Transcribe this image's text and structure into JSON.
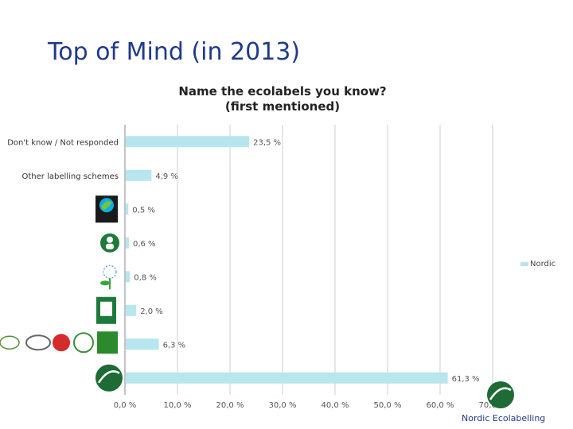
{
  "slide": {
    "title": "Top of Mind (in 2013)"
  },
  "footer": {
    "text": "Nordic Ecolabelling"
  },
  "chart_data": {
    "type": "bar",
    "orientation": "horizontal",
    "title_lines": [
      "Name the ecolabels you know?",
      "(first mentioned)"
    ],
    "categories": [
      "Don't know / Not responded",
      "Other labelling schemes",
      "",
      "",
      "",
      "",
      "",
      ""
    ],
    "category_icons": [
      "",
      "",
      "fairtrade-logo-icon",
      "ecolabel-person-icon",
      "eu-flower-icon",
      "bra-miljoval-icon",
      "organic-labels-icon",
      "nordic-swan-icon"
    ],
    "series": [
      {
        "name": "Nordic",
        "color": "#b8e6ef",
        "values": [
          23.5,
          4.9,
          0.5,
          0.6,
          0.8,
          2.0,
          6.3,
          61.3
        ],
        "value_labels": [
          "23,5 %",
          "4,9 %",
          "0,5 %",
          "0,6 %",
          "0,8 %",
          "2,0 %",
          "6,3 %",
          "61,3 %"
        ]
      }
    ],
    "xlim": [
      0,
      70
    ],
    "x_ticks": [
      "0,0 %",
      "10,0 %",
      "20,0 %",
      "30,0 %",
      "40,0 %",
      "50,0 %",
      "60,0 %",
      "70,0 %"
    ],
    "grid": true,
    "legend_position": "right"
  }
}
